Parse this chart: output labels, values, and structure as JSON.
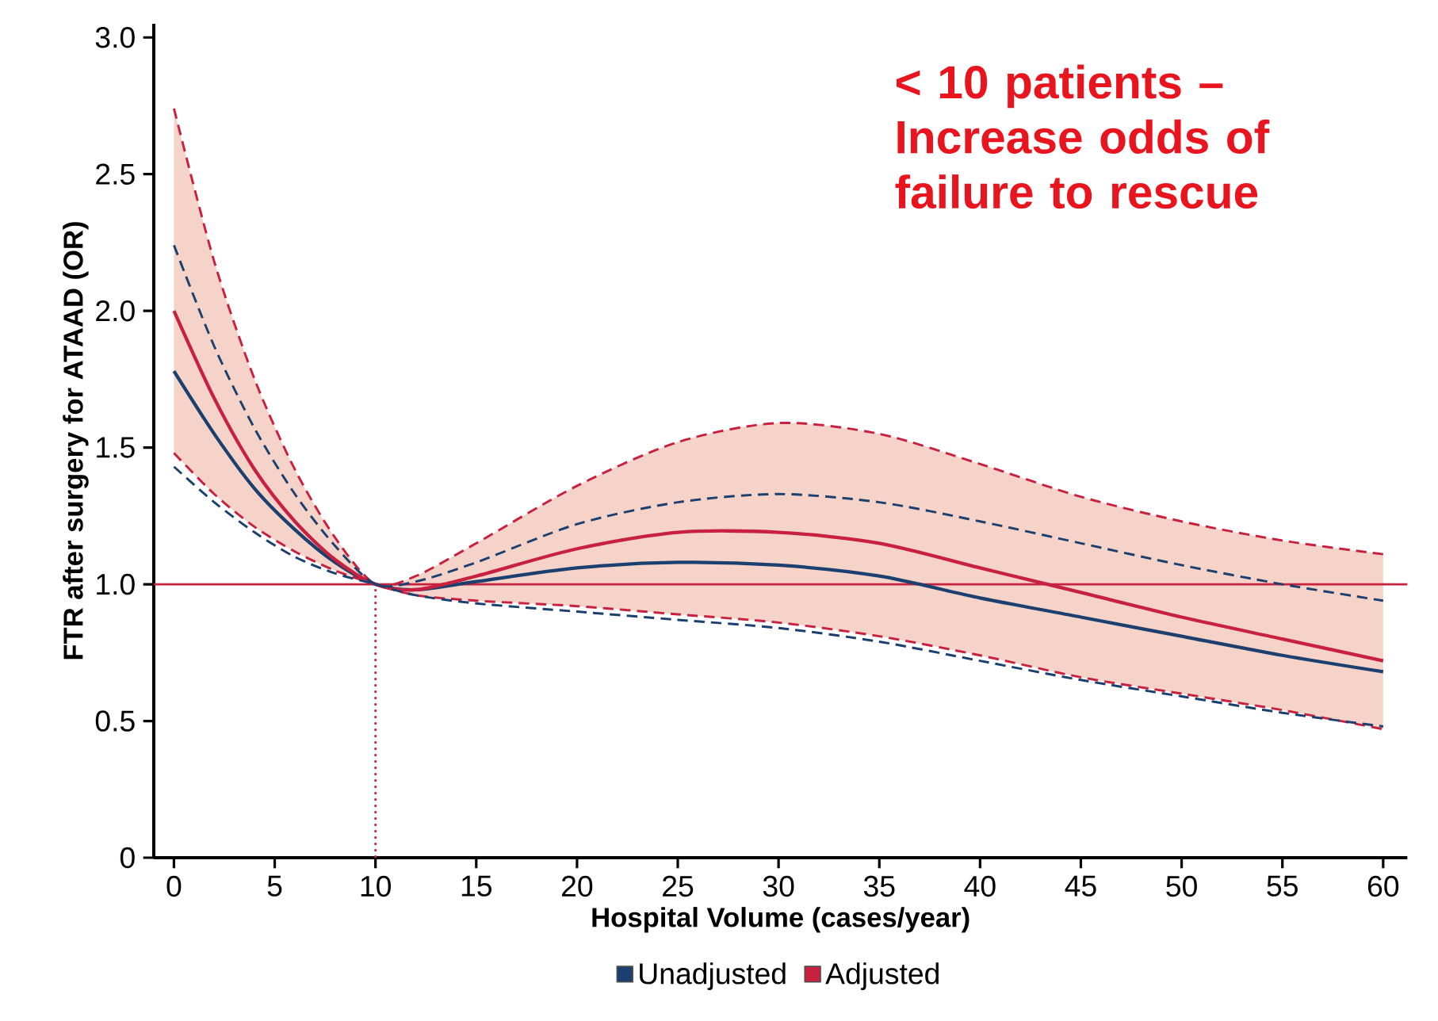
{
  "chart_data": {
    "type": "line",
    "xlabel": "Hospital Volume (cases/year)",
    "ylabel": "FTR after surgery for ATAAD (OR)",
    "annotations": [
      "< 10 patients – Increase odds of failure to rescue"
    ],
    "x": [
      0,
      2,
      4,
      6,
      8,
      10,
      12,
      15,
      20,
      25,
      30,
      35,
      40,
      45,
      50,
      55,
      60
    ],
    "series": [
      {
        "name": "Unadjusted",
        "color": "#1b3f6e",
        "values": [
          1.78,
          1.55,
          1.35,
          1.2,
          1.08,
          1.0,
          0.98,
          1.01,
          1.06,
          1.08,
          1.07,
          1.03,
          0.95,
          0.88,
          0.81,
          0.74,
          0.68
        ]
      },
      {
        "name": "Adjusted",
        "color": "#c8203f",
        "values": [
          2.0,
          1.68,
          1.42,
          1.23,
          1.09,
          1.0,
          0.98,
          1.03,
          1.13,
          1.19,
          1.19,
          1.15,
          1.06,
          0.97,
          0.88,
          0.8,
          0.72
        ],
        "lower": [
          1.48,
          1.33,
          1.21,
          1.12,
          1.05,
          1.0,
          0.96,
          0.94,
          0.92,
          0.89,
          0.86,
          0.81,
          0.74,
          0.66,
          0.6,
          0.54,
          0.47
        ],
        "upper": [
          2.74,
          2.18,
          1.75,
          1.42,
          1.17,
          1.0,
          1.03,
          1.15,
          1.36,
          1.52,
          1.59,
          1.55,
          1.44,
          1.32,
          1.23,
          1.16,
          1.11
        ]
      },
      {
        "color": "#c8203f",
        "line_style": "dashed",
        "values": [
          2.74,
          2.18,
          1.75,
          1.42,
          1.17,
          1.0,
          1.03,
          1.15,
          1.36,
          1.52,
          1.59,
          1.55,
          1.44,
          1.32,
          1.23,
          1.16,
          1.11
        ]
      },
      {
        "color": "#c8203f",
        "line_style": "dashed",
        "values": [
          1.48,
          1.33,
          1.21,
          1.12,
          1.05,
          1.0,
          0.96,
          0.94,
          0.92,
          0.89,
          0.86,
          0.81,
          0.74,
          0.66,
          0.6,
          0.54,
          0.47
        ]
      },
      {
        "color": "#1b3f6e",
        "line_style": "dashed",
        "values": [
          2.24,
          1.87,
          1.57,
          1.33,
          1.14,
          1.0,
          1.01,
          1.08,
          1.22,
          1.3,
          1.33,
          1.3,
          1.23,
          1.15,
          1.07,
          1.0,
          0.94
        ]
      },
      {
        "color": "#1b3f6e",
        "line_style": "dashed",
        "values": [
          1.43,
          1.3,
          1.19,
          1.1,
          1.04,
          1.0,
          0.96,
          0.93,
          0.9,
          0.87,
          0.84,
          0.79,
          0.72,
          0.65,
          0.59,
          0.53,
          0.48
        ]
      }
    ],
    "ref_lines": [
      {
        "axis": "y",
        "value": 1,
        "color": "#c8203f"
      },
      {
        "axis": "x",
        "value": 10,
        "color": "#c8203f",
        "line_style": "dotted"
      }
    ],
    "xlim": [
      -1,
      61.2
    ],
    "ylim": [
      0,
      3.05
    ],
    "xticks": [
      0,
      5,
      10,
      15,
      20,
      25,
      30,
      35,
      40,
      45,
      50,
      55,
      60
    ],
    "yticks": [
      {
        "value": 0,
        "label": "0"
      },
      {
        "value": 0.5,
        "label": "0.5"
      },
      {
        "value": 1,
        "label": "1.0"
      },
      {
        "value": 1.5,
        "label": "1.5"
      },
      {
        "value": 2,
        "label": "2.0"
      },
      {
        "value": 2.5,
        "label": "2.5"
      },
      {
        "value": 3,
        "label": "3.0"
      }
    ],
    "grid": false,
    "legend": "bottom"
  }
}
